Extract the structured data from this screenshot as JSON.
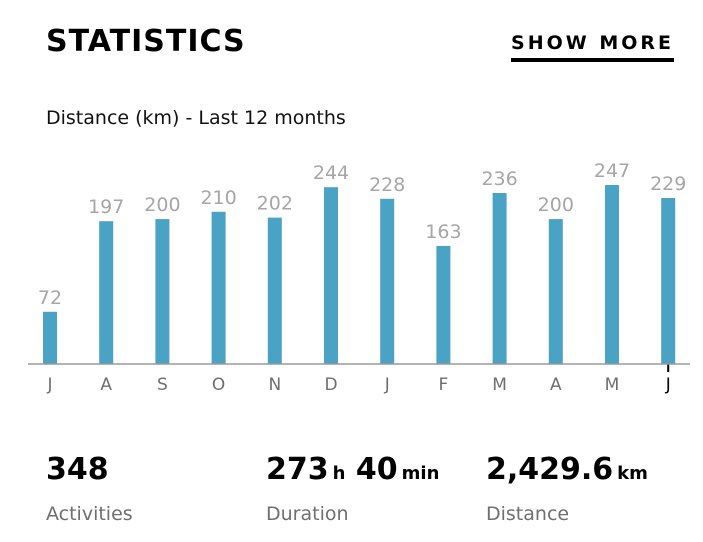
{
  "header": {
    "title": "STATISTICS",
    "show_more_label": "SHOW MORE"
  },
  "chart_data": {
    "type": "bar",
    "title": "Distance (km) - Last 12 months",
    "categories": [
      "J",
      "A",
      "S",
      "O",
      "N",
      "D",
      "J",
      "F",
      "M",
      "A",
      "M",
      "J"
    ],
    "values": [
      72,
      197,
      200,
      210,
      202,
      244,
      228,
      163,
      236,
      200,
      247,
      229
    ],
    "ylim": [
      0,
      260
    ],
    "xlabel": "",
    "ylabel": "",
    "colors": {
      "bar": "#4aa2c4",
      "value_label": "#a6a6a6",
      "tick_label": "#6e6e6e",
      "last_tick_label": "#000000",
      "axis": "#9a9a9a"
    }
  },
  "stats": {
    "activities": {
      "value": "348",
      "label": "Activities"
    },
    "duration": {
      "hours": "273",
      "hours_unit": "h",
      "minutes": "40",
      "minutes_unit": "min",
      "label": "Duration"
    },
    "distance": {
      "value": "2,429.6",
      "unit": "km",
      "label": "Distance"
    }
  }
}
